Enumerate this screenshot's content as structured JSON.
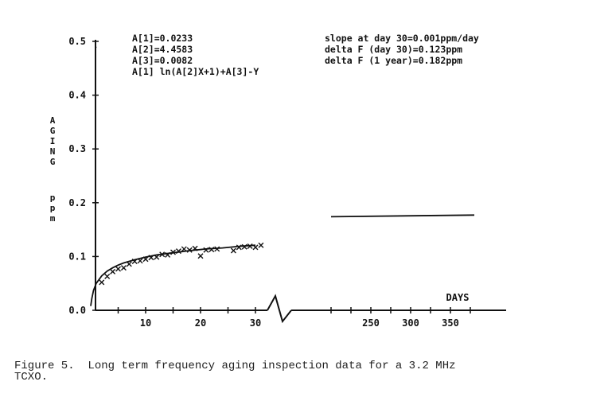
{
  "chart_data": {
    "type": "scatter",
    "title": "",
    "ylabel": "AGING ppm",
    "xlabel": "DAYS",
    "ylim": [
      0.0,
      0.5
    ],
    "y_ticks": [
      "0.0",
      "0.1",
      "0.2",
      "0.3",
      "0.4",
      "0.5"
    ],
    "x_ticks": [
      "10",
      "20",
      "30",
      "250",
      "300",
      "350"
    ],
    "axis_break": "between day 30 and day 250",
    "fit_parameters": [
      "A[1]=0.0233",
      "A[2]=4.4583",
      "A[3]=0.0082",
      "A[1] ln(A[2]X+1)+A[3]-Y"
    ],
    "annotations": [
      "slope at day 30=0.001ppm/day",
      "delta F (day 30)=0.123ppm",
      "delta F (1 year)=0.182ppm"
    ],
    "series": [
      {
        "marker": "x",
        "x": [
          2,
          3,
          4,
          5,
          6,
          7,
          8,
          9,
          10,
          11,
          12,
          13,
          14,
          15,
          16,
          17,
          18,
          19,
          20,
          21,
          22,
          23,
          26,
          27,
          28,
          29,
          30,
          31
        ],
        "y": [
          0.052,
          0.063,
          0.072,
          0.077,
          0.079,
          0.086,
          0.091,
          0.092,
          0.095,
          0.098,
          0.099,
          0.104,
          0.103,
          0.108,
          0.11,
          0.114,
          0.112,
          0.115,
          0.101,
          0.112,
          0.113,
          0.114,
          0.111,
          0.117,
          0.118,
          0.119,
          0.117,
          0.121
        ]
      },
      {
        "marker": "line",
        "x": [
          0,
          0.2,
          0.5,
          1,
          2,
          3,
          4,
          5,
          6,
          8,
          10,
          12,
          15,
          18,
          21,
          24,
          27,
          30
        ],
        "y": [
          0.008,
          0.022,
          0.037,
          0.05,
          0.064,
          0.073,
          0.079,
          0.084,
          0.088,
          0.094,
          0.099,
          0.103,
          0.107,
          0.111,
          0.114,
          0.116,
          0.119,
          0.121
        ]
      },
      {
        "marker": "line",
        "x": [
          200,
          380
        ],
        "y": [
          0.174,
          0.177
        ]
      }
    ]
  },
  "caption": "Figure 5.  Long term frequency aging inspection data for a 3.2 MHz\nTCXO."
}
